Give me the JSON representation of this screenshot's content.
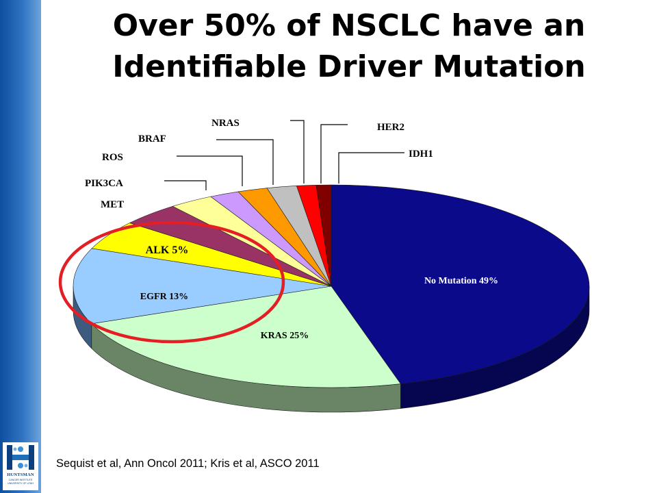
{
  "title_line1": "Over 50% of NSCLC have an",
  "title_line2": "Identifiable Driver Mutation",
  "citation": "Sequist et al, Ann Oncol 2011; Kris et al, ASCO 2011",
  "logo": {
    "name": "HUNTSMAN",
    "sub_line1": "CANCER INSTITUTE",
    "sub_line2": "UNIVERSITY OF UTAH"
  },
  "chart_data": {
    "type": "pie",
    "style": "3d",
    "slices": [
      {
        "label": "No Mutation",
        "value": 49,
        "text": "No Mutation 49%",
        "color": "#0a0a8a",
        "side": "#050550"
      },
      {
        "label": "KRAS",
        "value": 25,
        "text": "KRAS 25%",
        "color": "#ccffcc",
        "side": "#6a8566"
      },
      {
        "label": "EGFR",
        "value": 13,
        "text": "EGFR 13%",
        "color": "#99ccff",
        "side": "#3d5a7f"
      },
      {
        "label": "ALK",
        "value": 5,
        "text": "ALK 5%",
        "color": "#ffff00",
        "side": "#8a8a00"
      },
      {
        "label": "MET",
        "value": 4,
        "text": "MET",
        "color": "#993366",
        "side": "#5a1e3c"
      },
      {
        "label": "PIK3CA",
        "value": 3,
        "text": "PIK3CA",
        "color": "#ffff99",
        "side": "#8a8a55"
      },
      {
        "label": "ROS",
        "value": 2,
        "text": "ROS",
        "color": "#cc99ff",
        "side": "#6a4e88"
      },
      {
        "label": "BRAF",
        "value": 2,
        "text": "BRAF",
        "color": "#ff9900",
        "side": "#8a5300"
      },
      {
        "label": "NRAS",
        "value": 2,
        "text": "NRAS",
        "color": "#c0c0c0",
        "side": "#6e6e6e"
      },
      {
        "label": "HER2",
        "value": 1.3,
        "text": "HER2",
        "color": "#ff0000",
        "side": "#880000"
      },
      {
        "label": "IDH1",
        "value": 1,
        "text": "IDH1",
        "color": "#800000",
        "side": "#400000"
      }
    ],
    "highlighted": [
      "EGFR",
      "ALK"
    ],
    "highlight_color": "#e31e24"
  }
}
